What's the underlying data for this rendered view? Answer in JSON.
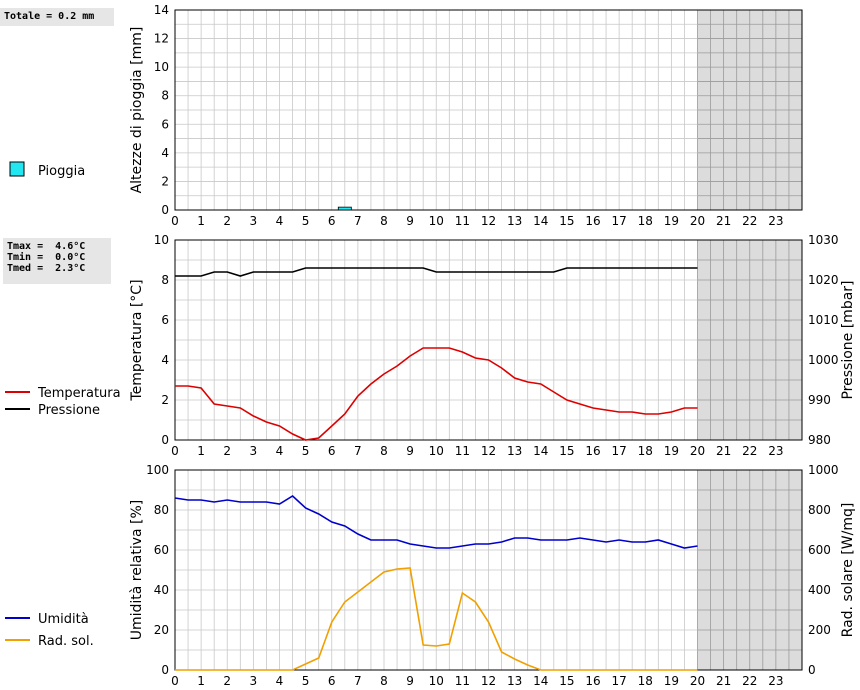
{
  "summary_rain": {
    "line1": "Totale = 0.2 mm"
  },
  "summary_temp": {
    "tmax": "Tmax =  4.6°C",
    "tmin": "Tmin =  0.0°C",
    "tmed": "Tmed =  2.3°C"
  },
  "colors": {
    "rain": "#22e6f0",
    "temperature": "#dd0000",
    "pressure": "#000000",
    "humidity": "#0000cc",
    "radiation": "#f0a000",
    "future_shade": "#dcdcdc",
    "grid": "#c8c8c8"
  },
  "chart_data": [
    {
      "type": "bar",
      "ylabel": "Altezze di pioggia [mm]",
      "ylim": [
        0,
        14
      ],
      "yticks": [
        0,
        2,
        4,
        6,
        8,
        10,
        12,
        14
      ],
      "xlim": [
        0,
        24
      ],
      "xticks": [
        0,
        1,
        2,
        3,
        4,
        5,
        6,
        7,
        8,
        9,
        10,
        11,
        12,
        13,
        14,
        15,
        16,
        17,
        18,
        19,
        20,
        21,
        22,
        23
      ],
      "shaded_from_hour": 20,
      "legend": [
        "Pioggia"
      ],
      "series": [
        {
          "name": "Pioggia",
          "bars": [
            {
              "hour": 6.25,
              "value": 0.2
            }
          ]
        }
      ]
    },
    {
      "type": "line",
      "ylabel": "Temperatura [°C]",
      "ylabel_right": "Pressione [mbar]",
      "ylim": [
        0,
        10
      ],
      "yticks": [
        0,
        2,
        4,
        6,
        8,
        10
      ],
      "ylim_right": [
        980,
        1030
      ],
      "yticks_right": [
        980,
        990,
        1000,
        1010,
        1020,
        1030
      ],
      "xlim": [
        0,
        24
      ],
      "xticks": [
        0,
        1,
        2,
        3,
        4,
        5,
        6,
        7,
        8,
        9,
        10,
        11,
        12,
        13,
        14,
        15,
        16,
        17,
        18,
        19,
        20,
        21,
        22,
        23
      ],
      "shaded_from_hour": 20,
      "legend": [
        "Temperatura",
        "Pressione"
      ],
      "series": [
        {
          "name": "Temperatura",
          "axis": "left",
          "x": [
            0,
            0.5,
            1,
            1.5,
            2,
            2.5,
            3,
            3.5,
            4,
            4.5,
            5,
            5.5,
            6,
            6.5,
            7,
            7.5,
            8,
            8.5,
            9,
            9.5,
            10,
            10.5,
            11,
            11.5,
            12,
            12.5,
            13,
            13.5,
            14,
            14.5,
            15,
            15.5,
            16,
            16.5,
            17,
            17.5,
            18,
            18.5,
            19,
            19.5,
            20
          ],
          "y": [
            2.7,
            2.7,
            2.6,
            1.8,
            1.7,
            1.6,
            1.2,
            0.9,
            0.7,
            0.3,
            0.0,
            0.1,
            0.7,
            1.3,
            2.2,
            2.8,
            3.3,
            3.7,
            4.2,
            4.6,
            4.6,
            4.6,
            4.4,
            4.1,
            4.0,
            3.6,
            3.1,
            2.9,
            2.8,
            2.4,
            2.0,
            1.8,
            1.6,
            1.5,
            1.4,
            1.4,
            1.3,
            1.3,
            1.4,
            1.6,
            1.6
          ]
        },
        {
          "name": "Pressione",
          "axis": "right",
          "x": [
            0,
            1,
            1.5,
            2,
            2.5,
            3,
            3.5,
            4,
            4.5,
            5,
            5.5,
            6,
            6.5,
            7,
            7.5,
            8,
            8.5,
            9,
            9.5,
            10,
            10.5,
            11,
            11.5,
            12,
            12.5,
            13,
            13.5,
            14,
            14.5,
            15,
            15.5,
            16,
            16.5,
            17,
            17.5,
            18,
            18.5,
            19,
            19.5,
            20
          ],
          "y": [
            1021,
            1021,
            1022,
            1022,
            1021,
            1022,
            1022,
            1022,
            1022,
            1023,
            1023,
            1023,
            1023,
            1023,
            1023,
            1023,
            1023,
            1023,
            1023,
            1022,
            1022,
            1022,
            1022,
            1022,
            1022,
            1022,
            1022,
            1022,
            1022,
            1023,
            1023,
            1023,
            1023,
            1023,
            1023,
            1023,
            1023,
            1023,
            1023,
            1023
          ]
        }
      ]
    },
    {
      "type": "line",
      "ylabel": "Umidità relativa [%]",
      "ylabel_right": "Rad. solare [W/mq]",
      "ylim": [
        0,
        100
      ],
      "yticks": [
        0,
        20,
        40,
        60,
        80,
        100
      ],
      "ylim_right": [
        0,
        1000
      ],
      "yticks_right": [
        0,
        200,
        400,
        600,
        800,
        1000
      ],
      "xlim": [
        0,
        24
      ],
      "xticks": [
        0,
        1,
        2,
        3,
        4,
        5,
        6,
        7,
        8,
        9,
        10,
        11,
        12,
        13,
        14,
        15,
        16,
        17,
        18,
        19,
        20,
        21,
        22,
        23
      ],
      "shaded_from_hour": 20,
      "legend": [
        "Umidità",
        "Rad. sol."
      ],
      "series": [
        {
          "name": "Umidità",
          "axis": "left",
          "x": [
            0,
            0.5,
            1,
            1.5,
            2,
            2.5,
            3,
            3.5,
            4,
            4.5,
            5,
            5.5,
            6,
            6.5,
            7,
            7.5,
            8,
            8.5,
            9,
            9.5,
            10,
            10.5,
            11,
            11.5,
            12,
            12.5,
            13,
            13.5,
            14,
            14.5,
            15,
            15.5,
            16,
            16.5,
            17,
            17.5,
            18,
            18.5,
            19,
            19.5,
            20
          ],
          "y": [
            86,
            85,
            85,
            84,
            85,
            84,
            84,
            84,
            83,
            87,
            81,
            78,
            74,
            72,
            68,
            65,
            65,
            65,
            63,
            62,
            61,
            61,
            62,
            63,
            63,
            64,
            66,
            66,
            65,
            65,
            65,
            66,
            65,
            64,
            65,
            64,
            64,
            65,
            63,
            61,
            62
          ]
        },
        {
          "name": "Rad. sol.",
          "axis": "right",
          "x": [
            0,
            1,
            2,
            3,
            4,
            4.5,
            5,
            5.5,
            6,
            6.5,
            7,
            7.5,
            8,
            8.5,
            9,
            9.5,
            10,
            10.5,
            11,
            11.5,
            12,
            12.5,
            13,
            13.5,
            14,
            15,
            16,
            17,
            18,
            19,
            20
          ],
          "y": [
            0,
            0,
            0,
            0,
            0,
            0,
            30,
            60,
            240,
            340,
            390,
            440,
            490,
            505,
            510,
            125,
            120,
            130,
            385,
            340,
            240,
            90,
            55,
            25,
            0,
            0,
            0,
            0,
            0,
            0,
            0
          ]
        }
      ]
    }
  ]
}
